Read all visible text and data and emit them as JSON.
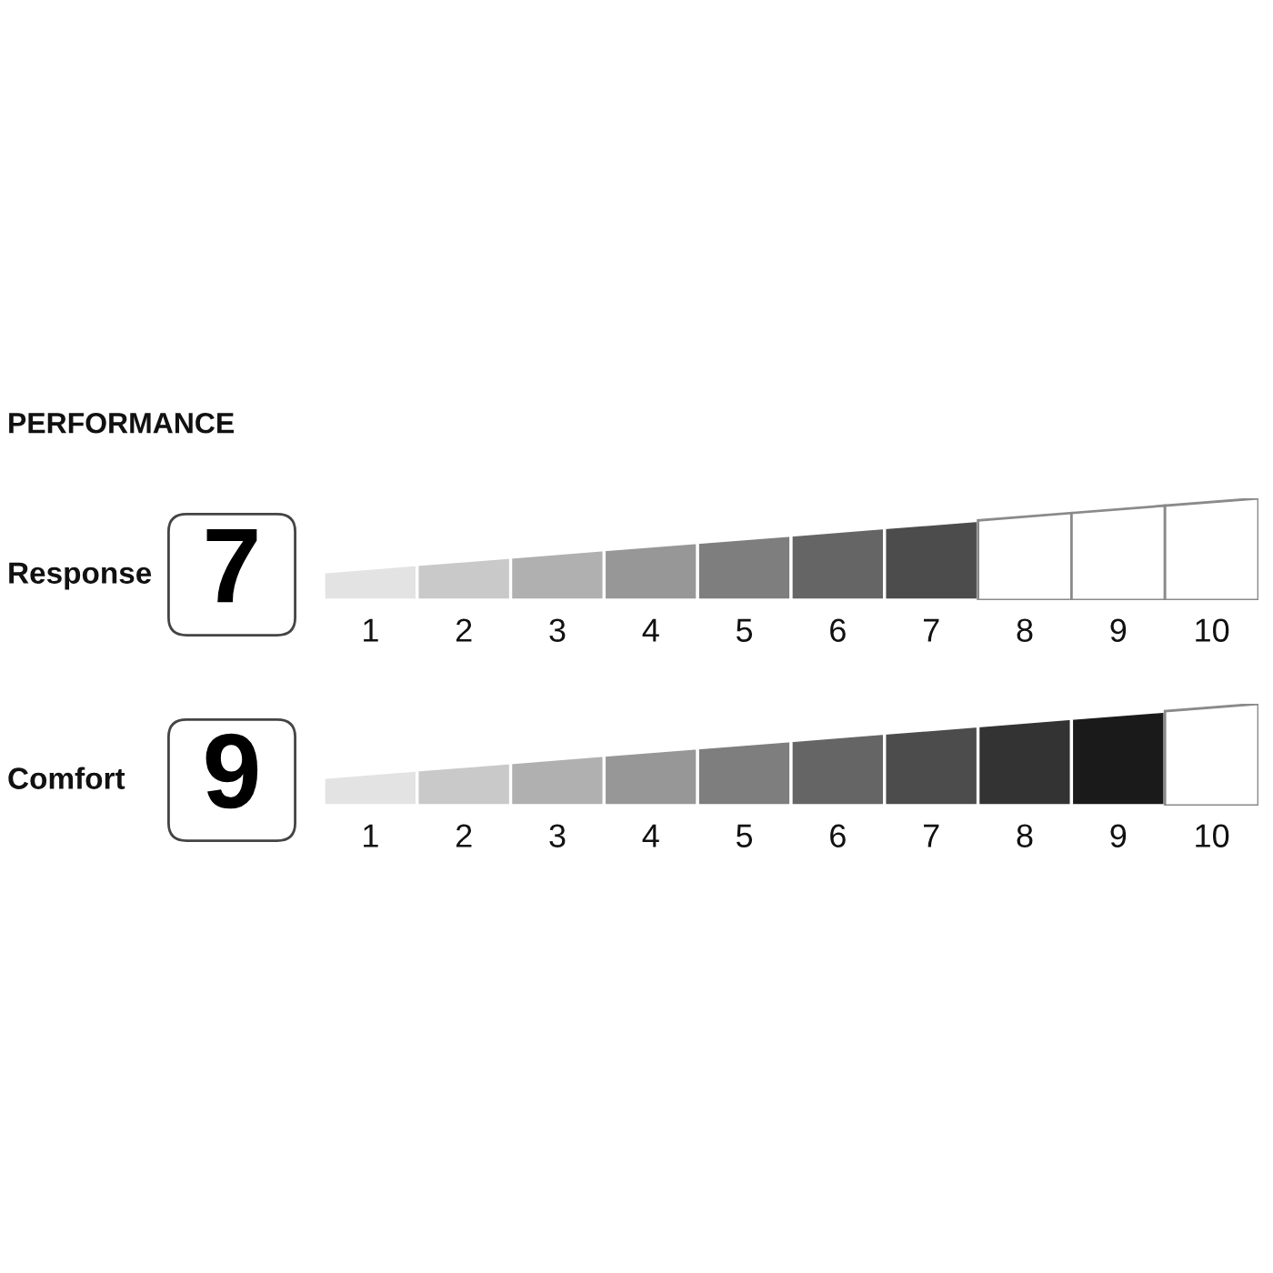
{
  "chart_data": [
    {
      "type": "bar",
      "title": "PERFORMANCE",
      "orientation": "horizontal",
      "stacked": true,
      "categories": [
        "Response"
      ],
      "series": [
        {
          "color": "#e3e3e3",
          "values": [
            1
          ]
        },
        {
          "color": "#c9c9c9",
          "values": [
            1
          ]
        },
        {
          "color": "#b0b0b0",
          "values": [
            1
          ]
        },
        {
          "color": "#979797",
          "values": [
            1
          ]
        },
        {
          "color": "#7e7e7e",
          "values": [
            1
          ]
        },
        {
          "color": "#656565",
          "values": [
            1
          ]
        },
        {
          "color": "#4c4c4c",
          "values": [
            1
          ]
        }
      ],
      "totals": [
        "7"
      ],
      "xlim": [
        0,
        10
      ],
      "xticks": [
        {
          "value": 0.5,
          "label": "1"
        },
        {
          "value": 1.5,
          "label": "2"
        },
        {
          "value": 2.5,
          "label": "3"
        },
        {
          "value": 3.5,
          "label": "4"
        },
        {
          "value": 4.5,
          "label": "5"
        },
        {
          "value": 5.5,
          "label": "6"
        },
        {
          "value": 6.5,
          "label": "7"
        },
        {
          "value": 7.5,
          "label": "8"
        },
        {
          "value": 8.5,
          "label": "9"
        },
        {
          "value": 9.5,
          "label": "10"
        }
      ]
    },
    {
      "type": "bar",
      "orientation": "horizontal",
      "stacked": true,
      "categories": [
        "Comfort"
      ],
      "series": [
        {
          "color": "#e3e3e3",
          "values": [
            1
          ]
        },
        {
          "color": "#c9c9c9",
          "values": [
            1
          ]
        },
        {
          "color": "#b0b0b0",
          "values": [
            1
          ]
        },
        {
          "color": "#979797",
          "values": [
            1
          ]
        },
        {
          "color": "#7e7e7e",
          "values": [
            1
          ]
        },
        {
          "color": "#656565",
          "values": [
            1
          ]
        },
        {
          "color": "#4c4c4c",
          "values": [
            1
          ]
        },
        {
          "color": "#333333",
          "values": [
            1
          ]
        },
        {
          "color": "#1a1a1a",
          "values": [
            1
          ]
        }
      ],
      "totals": [
        "9"
      ],
      "xlim": [
        0,
        10
      ],
      "xticks": [
        {
          "value": 0.5,
          "label": "1"
        },
        {
          "value": 1.5,
          "label": "2"
        },
        {
          "value": 2.5,
          "label": "3"
        },
        {
          "value": 3.5,
          "label": "4"
        },
        {
          "value": 4.5,
          "label": "5"
        },
        {
          "value": 5.5,
          "label": "6"
        },
        {
          "value": 6.5,
          "label": "7"
        },
        {
          "value": 7.5,
          "label": "8"
        },
        {
          "value": 8.5,
          "label": "9"
        },
        {
          "value": 9.5,
          "label": "10"
        }
      ]
    }
  ]
}
